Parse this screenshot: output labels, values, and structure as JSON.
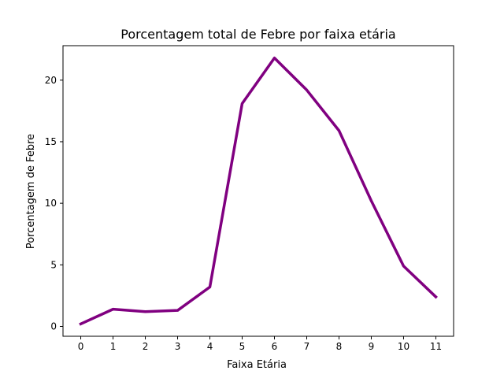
{
  "chart_data": {
    "type": "line",
    "title": "Porcentagem total de Febre por faixa etária",
    "xlabel": "Faixa Etária",
    "ylabel": "Porcentagem de Febre",
    "x": [
      0,
      1,
      2,
      3,
      4,
      5,
      6,
      7,
      8,
      9,
      10,
      11
    ],
    "xticks": [
      "0",
      "1",
      "2",
      "3",
      "4",
      "5",
      "6",
      "7",
      "8",
      "9",
      "10",
      "11"
    ],
    "yticks": [
      "0",
      "5",
      "10",
      "15",
      "20"
    ],
    "series": [
      {
        "values": [
          0.2,
          1.4,
          1.2,
          1.3,
          3.2,
          18.1,
          21.8,
          19.2,
          15.9,
          10.2,
          4.9,
          2.4
        ],
        "color": "#800080"
      }
    ],
    "xlim": [
      -0.55,
      11.55
    ],
    "ylim": [
      -0.8,
      22.8
    ],
    "grid": false
  }
}
